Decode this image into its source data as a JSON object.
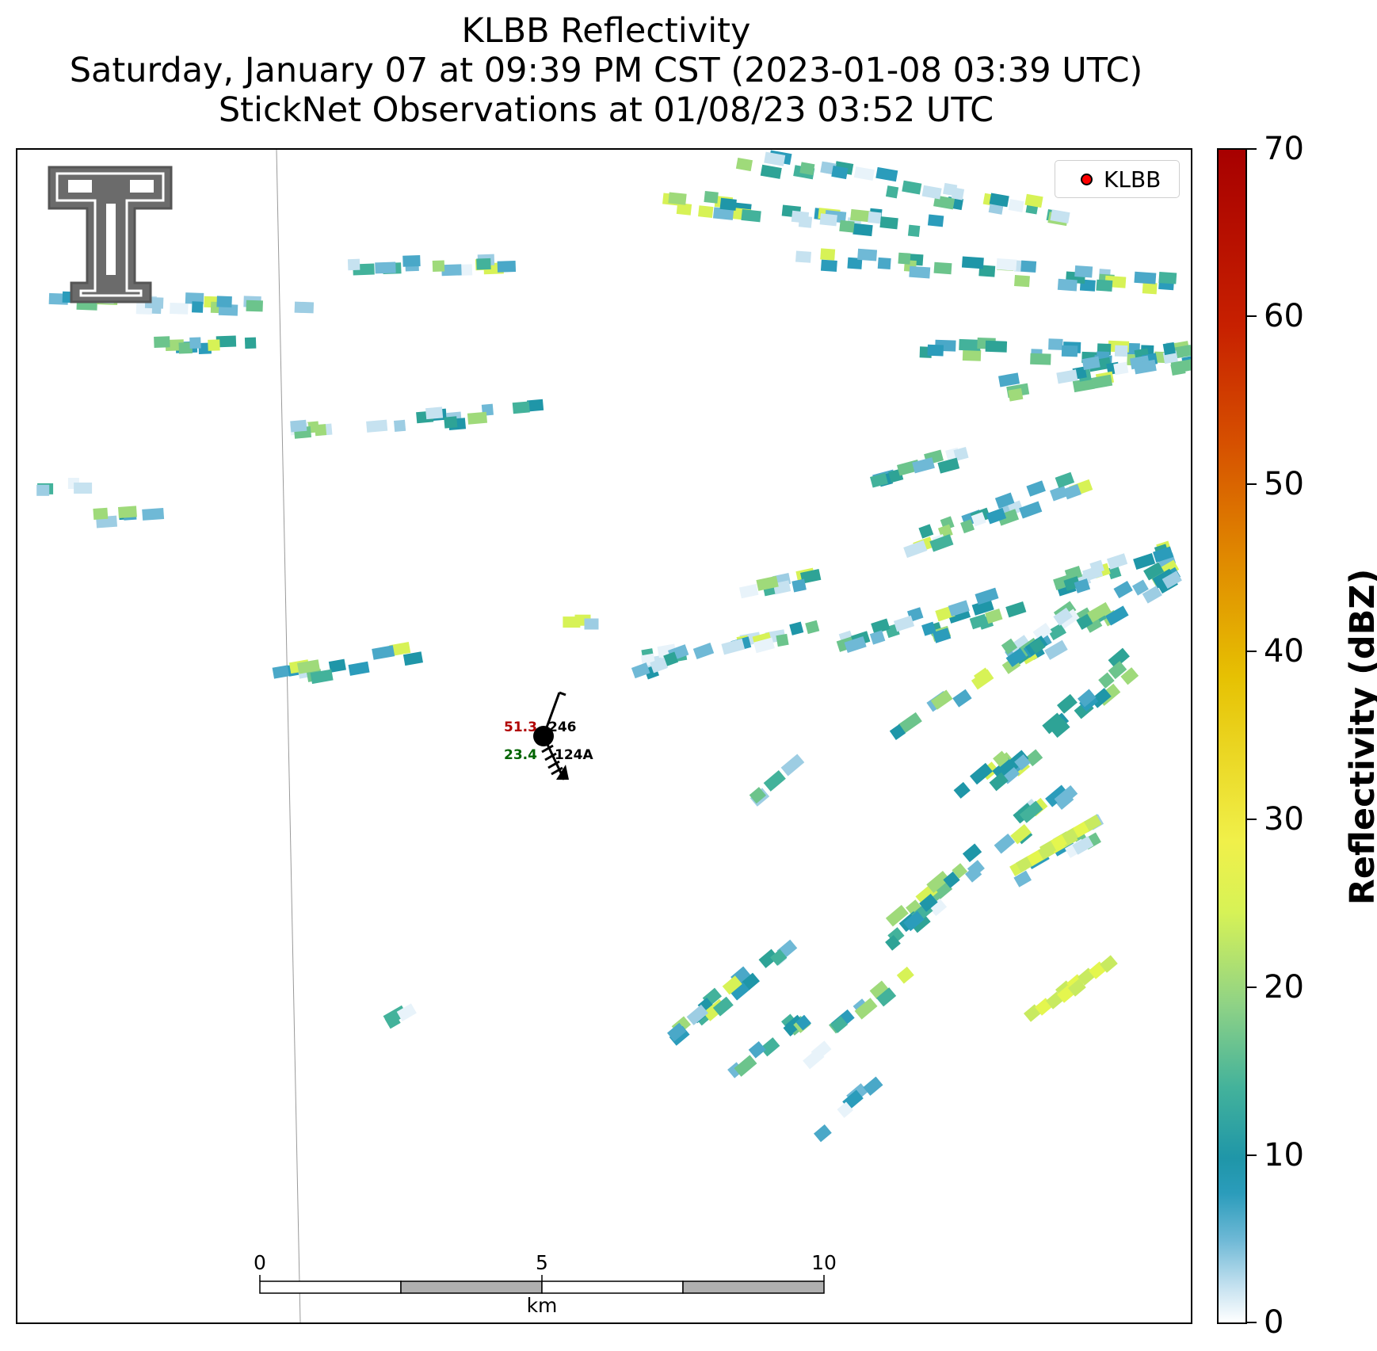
{
  "header": {
    "title": "KLBB Reflectivity",
    "subtitle": "Saturday, January 07 at 09:39 PM CST (2023-01-08 03:39 UTC)",
    "observations": "StickNet Observations at 01/08/23 03:52 UTC"
  },
  "legend": {
    "label": "KLBB",
    "marker_color": "#ff0000"
  },
  "station": {
    "temperature": "51.3",
    "dewpoint": "23.4",
    "wind_dir": "246",
    "station_id": "124A",
    "temperature_color": "#b00000",
    "dewpoint_color": "#006400"
  },
  "scale_bar": {
    "ticks": [
      "0",
      "5",
      "10"
    ],
    "unit": "km"
  },
  "colorbar": {
    "title": "Reflectivity (dBZ)",
    "min": 0,
    "max": 70,
    "ticks": [
      "0",
      "10",
      "20",
      "30",
      "40",
      "50",
      "60",
      "70"
    ]
  },
  "logo": {
    "name": "texas-tech-double-t-logo",
    "letters": "T"
  }
}
